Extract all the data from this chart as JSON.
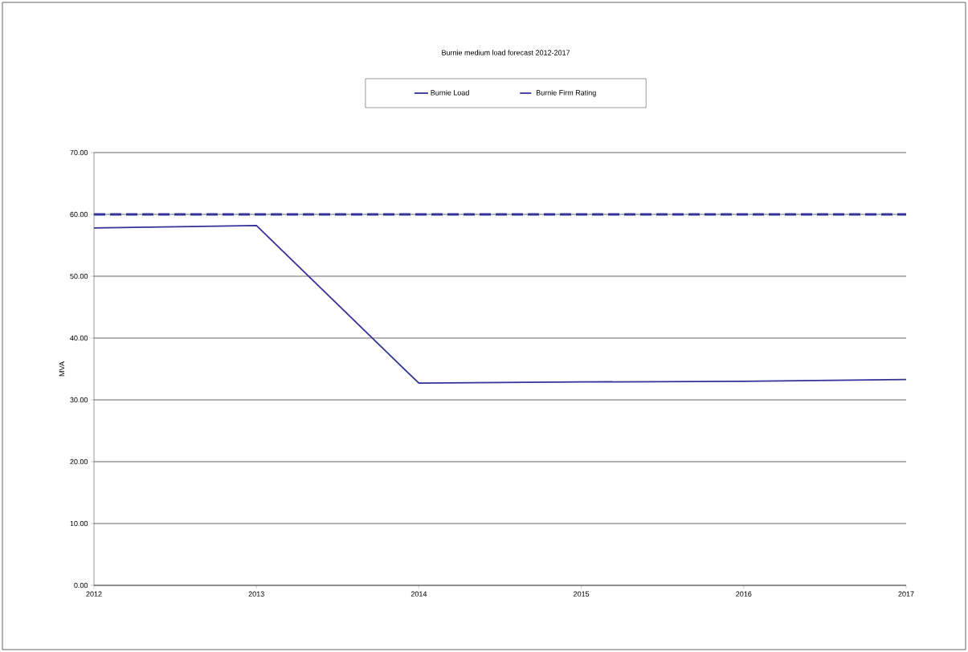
{
  "chart_data": {
    "type": "line",
    "title": "Burnie medium load forecast 2012-2017",
    "ylabel": "MVA",
    "x": [
      2012,
      2013,
      2014,
      2015,
      2016,
      2017
    ],
    "series": [
      {
        "name": "Burnie Load",
        "color": "#333399",
        "line_style": "solid",
        "values": [
          57.8,
          58.2,
          32.7,
          32.9,
          33.0,
          33.3
        ]
      },
      {
        "name": "Burnie Firm Rating",
        "color": "#333399",
        "line_style": "dashed",
        "values": [
          60,
          60,
          60,
          60,
          60,
          60
        ]
      }
    ],
    "xlim": [
      2012,
      2017
    ],
    "xticks": [
      2012,
      2013,
      2014,
      2015,
      2016,
      2017
    ],
    "ylim": [
      0,
      70
    ],
    "yticks": [
      {
        "value": 0,
        "label": "0.00"
      },
      {
        "value": 10,
        "label": "10.00"
      },
      {
        "value": 20,
        "label": "20.00"
      },
      {
        "value": 30,
        "label": "30.00"
      },
      {
        "value": 40,
        "label": "40.00"
      },
      {
        "value": 50,
        "label": "50.00"
      },
      {
        "value": 60,
        "label": "60.00"
      },
      {
        "value": 70,
        "label": "70.00"
      }
    ],
    "grid": "y",
    "legend": "top",
    "marker": "none"
  }
}
